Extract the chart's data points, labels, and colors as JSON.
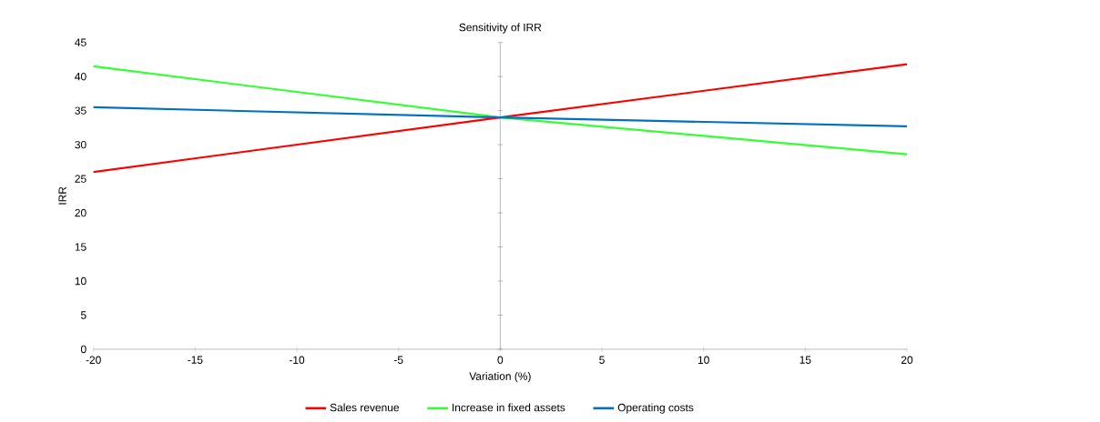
{
  "chart_data": {
    "type": "line",
    "title": "Sensitivity of IRR",
    "xlabel": "Variation (%)",
    "ylabel": "IRR",
    "x": [
      -20,
      0,
      20
    ],
    "series": [
      {
        "name": "Sales revenue",
        "color": "#ff0000",
        "values": [
          26,
          34,
          41.8
        ]
      },
      {
        "name": "Increase in fixed assets",
        "color": "#33ff33",
        "values": [
          41.5,
          34,
          28.6
        ]
      },
      {
        "name": "Operating costs",
        "color": "#0070c0",
        "values": [
          35.5,
          34,
          32.7
        ]
      }
    ],
    "xlim": [
      -20,
      20
    ],
    "ylim": [
      0,
      45
    ],
    "xticks": [
      -20,
      -15,
      -10,
      -5,
      0,
      5,
      10,
      15,
      20
    ],
    "yticks": [
      0,
      5,
      10,
      15,
      20,
      25,
      30,
      35,
      40,
      45
    ],
    "ref_lines": [
      {
        "axis": "x",
        "value": 0,
        "color": "#808080"
      }
    ],
    "grid": false,
    "legend": "bottom",
    "marker": "none",
    "line_style": "solid"
  }
}
